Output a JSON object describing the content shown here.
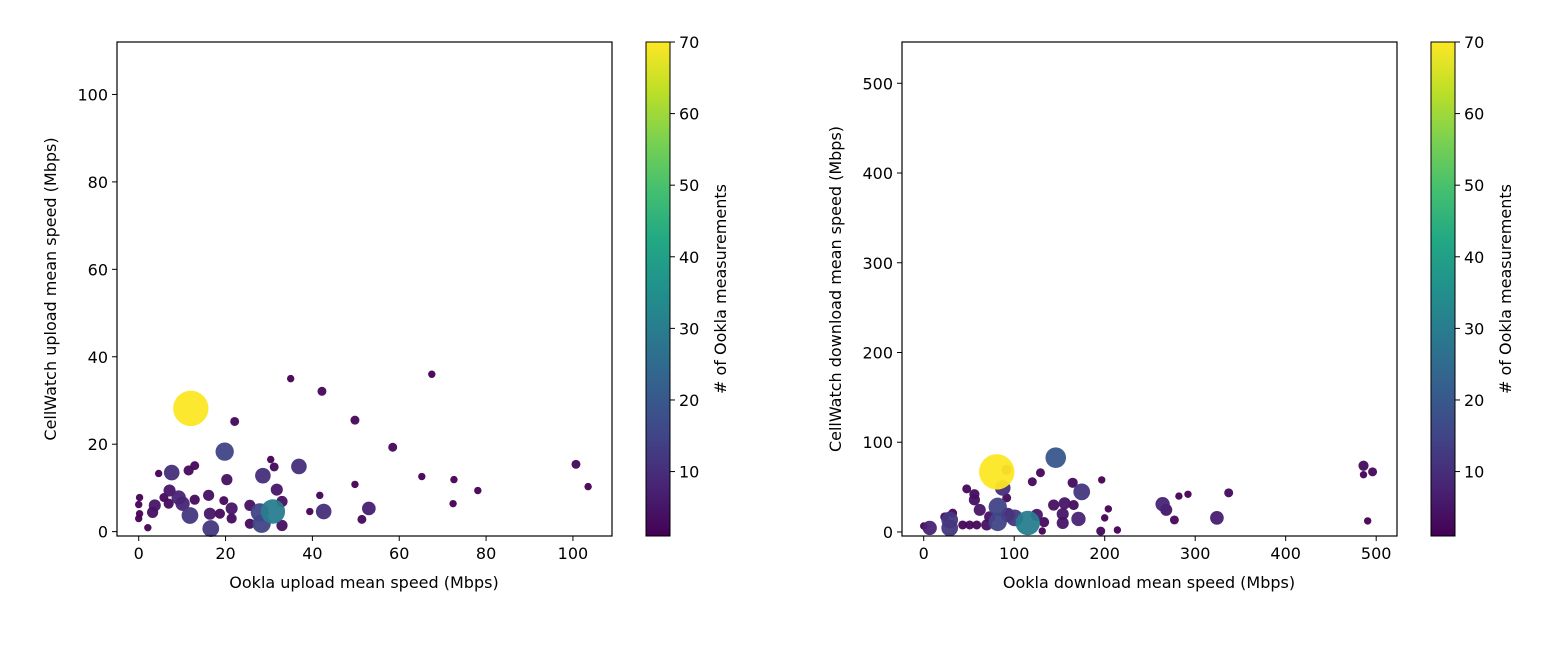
{
  "chart_data": [
    {
      "type": "scatter",
      "xlabel": "Ookla upload mean speed (Mbps)",
      "ylabel": "CellWatch upload mean speed (Mbps)",
      "xlim": [
        -5,
        109
      ],
      "ylim": [
        -1,
        112
      ],
      "xticks": [
        0,
        20,
        40,
        60,
        80,
        100
      ],
      "yticks": [
        0,
        20,
        40,
        60,
        80,
        100
      ],
      "grid": false,
      "colorbar": {
        "label": "# of Ookla measurements",
        "range": [
          1,
          70
        ],
        "ticks": [
          10,
          20,
          30,
          40,
          50,
          60,
          70
        ],
        "colormap": "viridis"
      },
      "point_fields": [
        "x",
        "y",
        "count"
      ],
      "points": [
        [
          12,
          28.2,
          70
        ],
        [
          35,
          35,
          1
        ],
        [
          67.5,
          36,
          1
        ],
        [
          42.2,
          32.1,
          2
        ],
        [
          49.8,
          25.5,
          2
        ],
        [
          22.1,
          25.2,
          2
        ],
        [
          58.5,
          19.3,
          2
        ],
        [
          19.8,
          18.3,
          15
        ],
        [
          100.7,
          15.4,
          2
        ],
        [
          103.5,
          10.3,
          1
        ],
        [
          7.6,
          13.5,
          10
        ],
        [
          12.9,
          15.1,
          2
        ],
        [
          11.5,
          14,
          3
        ],
        [
          4.6,
          13.3,
          1
        ],
        [
          28.6,
          12.8,
          10
        ],
        [
          30.4,
          16.5,
          1
        ],
        [
          36.9,
          14.9,
          10
        ],
        [
          31.2,
          14.8,
          2
        ],
        [
          20.3,
          11.9,
          4
        ],
        [
          49.8,
          10.8,
          1
        ],
        [
          31.8,
          9.6,
          5
        ],
        [
          41.7,
          8.3,
          1
        ],
        [
          7.1,
          9.4,
          5
        ],
        [
          42.6,
          4.6,
          10
        ],
        [
          30.9,
          4.6,
          30
        ],
        [
          28.3,
          1.8,
          15
        ],
        [
          16.6,
          0.7,
          12
        ],
        [
          11.8,
          3.7,
          12
        ],
        [
          9.2,
          7.8,
          8
        ],
        [
          10.1,
          6.4,
          8
        ],
        [
          12.9,
          7.3,
          3
        ],
        [
          16.1,
          8.3,
          4
        ],
        [
          21.4,
          5.3,
          5
        ],
        [
          19.6,
          7.1,
          2
        ],
        [
          25.6,
          6,
          4
        ],
        [
          27.9,
          4.4,
          15
        ],
        [
          33,
          6.9,
          4
        ],
        [
          33,
          1.4,
          4
        ],
        [
          21.4,
          3,
          3
        ],
        [
          25.6,
          1.8,
          3
        ],
        [
          16.4,
          4.1,
          5
        ],
        [
          18.7,
          4.1,
          3
        ],
        [
          3.7,
          6,
          5
        ],
        [
          3.2,
          4.4,
          4
        ],
        [
          0.2,
          7.8,
          1
        ],
        [
          0,
          6.2,
          1
        ],
        [
          0.2,
          4.1,
          1
        ],
        [
          0,
          3,
          1
        ],
        [
          2.1,
          0.9,
          1
        ],
        [
          5.8,
          7.8,
          2
        ],
        [
          6.9,
          6.4,
          3
        ],
        [
          39.4,
          4.6,
          1
        ],
        [
          51.4,
          2.8,
          2
        ],
        [
          53,
          5.3,
          7
        ],
        [
          72.6,
          11.9,
          1
        ],
        [
          65.2,
          12.6,
          1
        ],
        [
          78.1,
          9.4,
          1
        ],
        [
          72.4,
          6.4,
          1
        ]
      ]
    },
    {
      "type": "scatter",
      "xlabel": "Ookla download mean speed (Mbps)",
      "ylabel": "CellWatch download mean speed (Mbps)",
      "xlim": [
        -24,
        523
      ],
      "ylim": [
        -4.5,
        546
      ],
      "xticks": [
        0,
        100,
        200,
        300,
        400,
        500
      ],
      "yticks": [
        0,
        100,
        200,
        300,
        400,
        500
      ],
      "grid": false,
      "colorbar": {
        "label": "# of Ookla measurements",
        "range": [
          1,
          70
        ],
        "ticks": [
          10,
          20,
          30,
          40,
          50,
          60,
          70
        ],
        "colormap": "viridis"
      },
      "point_fields": [
        "x",
        "y",
        "count"
      ],
      "points": [
        [
          80.7,
          67,
          70
        ],
        [
          91.7,
          69.4,
          3
        ],
        [
          145.9,
          82.8,
          20
        ],
        [
          129,
          66,
          2
        ],
        [
          120,
          56,
          2
        ],
        [
          164.6,
          54.8,
          3
        ],
        [
          196.7,
          58,
          1
        ],
        [
          174.6,
          44.7,
          12
        ],
        [
          87.3,
          49,
          10
        ],
        [
          47.5,
          48,
          2
        ],
        [
          56,
          42,
          3
        ],
        [
          56,
          35.8,
          4
        ],
        [
          81.8,
          28,
          15
        ],
        [
          91.7,
          38,
          2
        ],
        [
          204,
          25.7,
          1
        ],
        [
          200,
          15.7,
          1
        ],
        [
          214,
          2.2,
          1
        ],
        [
          195.6,
          1,
          2
        ],
        [
          143.6,
          30,
          4
        ],
        [
          155.7,
          32,
          5
        ],
        [
          165.7,
          30,
          3
        ],
        [
          153.6,
          20,
          5
        ],
        [
          153.6,
          10,
          5
        ],
        [
          171,
          14.5,
          8
        ],
        [
          115,
          10,
          30
        ],
        [
          100.5,
          15.7,
          12
        ],
        [
          81.8,
          11.2,
          15
        ],
        [
          28.7,
          13.4,
          12
        ],
        [
          28.7,
          4.5,
          12
        ],
        [
          6.6,
          4.5,
          8
        ],
        [
          0,
          6.7,
          1
        ],
        [
          32,
          21,
          2
        ],
        [
          23.2,
          16.8,
          2
        ],
        [
          43,
          7.8,
          2
        ],
        [
          50.8,
          7.8,
          2
        ],
        [
          58.6,
          7.8,
          2
        ],
        [
          69.6,
          7.8,
          4
        ],
        [
          72.9,
          16.8,
          4
        ],
        [
          61.9,
          24.6,
          5
        ],
        [
          125,
          19,
          5
        ],
        [
          133,
          11,
          3
        ],
        [
          131,
          1.1,
          1
        ],
        [
          92.8,
          19,
          8
        ],
        [
          264,
          31,
          8
        ],
        [
          268,
          24.6,
          5
        ],
        [
          282,
          40,
          1
        ],
        [
          292,
          42,
          1
        ],
        [
          277,
          13.4,
          2
        ],
        [
          324,
          15.7,
          7
        ],
        [
          337,
          43.6,
          2
        ],
        [
          486,
          73.8,
          3
        ],
        [
          486,
          63.8,
          1
        ],
        [
          496,
          67,
          2
        ],
        [
          490.6,
          12.3,
          1
        ]
      ]
    }
  ]
}
